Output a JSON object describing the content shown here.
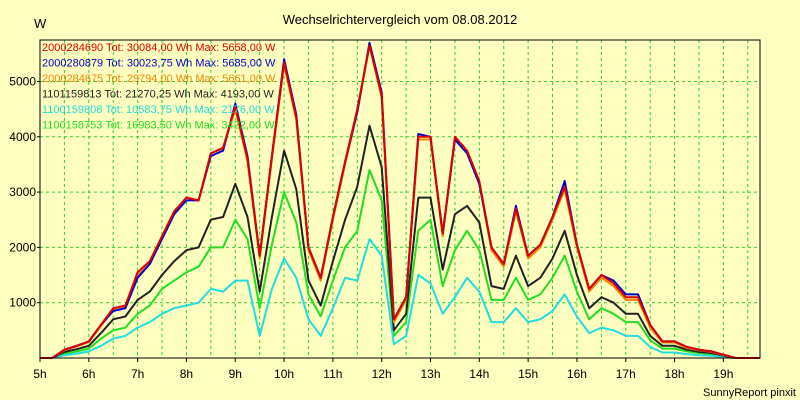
{
  "chart_data": {
    "type": "line",
    "title": "Wechselrichtervergleich vom 08.08.2012",
    "ylabel": "W",
    "xlabel": "",
    "credit": "SunnyReport pinxit",
    "ylim": [
      0,
      5750
    ],
    "xlim": [
      5.0,
      19.75
    ],
    "yticks": [
      1000,
      2000,
      3000,
      4000,
      5000
    ],
    "xticks": [
      {
        "v": 5,
        "label": "5h"
      },
      {
        "v": 6,
        "label": "6h"
      },
      {
        "v": 7,
        "label": "7h"
      },
      {
        "v": 8,
        "label": "8h"
      },
      {
        "v": 9,
        "label": "9h"
      },
      {
        "v": 10,
        "label": "10h"
      },
      {
        "v": 11,
        "label": "11h"
      },
      {
        "v": 12,
        "label": "12h"
      },
      {
        "v": 13,
        "label": "13h"
      },
      {
        "v": 14,
        "label": "14h"
      },
      {
        "v": 15,
        "label": "15h"
      },
      {
        "v": 16,
        "label": "16h"
      },
      {
        "v": 17,
        "label": "17h"
      },
      {
        "v": 18,
        "label": "18h"
      },
      {
        "v": 19,
        "label": "19h"
      }
    ],
    "grid": true,
    "legend_position": "top-left",
    "x": [
      5.0,
      5.25,
      5.5,
      5.75,
      6.0,
      6.25,
      6.5,
      6.75,
      7.0,
      7.25,
      7.5,
      7.75,
      8.0,
      8.25,
      8.5,
      8.75,
      9.0,
      9.25,
      9.5,
      9.75,
      10.0,
      10.25,
      10.5,
      10.75,
      11.0,
      11.25,
      11.5,
      11.75,
      12.0,
      12.25,
      12.5,
      12.75,
      13.0,
      13.25,
      13.5,
      13.75,
      14.0,
      14.25,
      14.5,
      14.75,
      15.0,
      15.25,
      15.5,
      15.75,
      16.0,
      16.25,
      16.5,
      16.75,
      17.0,
      17.25,
      17.5,
      17.75,
      18.0,
      18.25,
      18.5,
      18.75,
      19.0,
      19.25,
      19.5,
      19.75
    ],
    "series": [
      {
        "name": "2000284690 Tot: 30084,00 Wh Max: 5658,00 W",
        "color": "#dd0000",
        "values": [
          0,
          0,
          150,
          220,
          300,
          600,
          900,
          950,
          1550,
          1750,
          2200,
          2650,
          2900,
          2850,
          3700,
          3800,
          4550,
          3600,
          1850,
          3650,
          5350,
          4350,
          2000,
          1450,
          2550,
          3550,
          4500,
          5650,
          4750,
          700,
          1100,
          4000,
          4000,
          2250,
          4000,
          3750,
          3200,
          2000,
          1700,
          2700,
          1850,
          2050,
          2550,
          3100,
          2050,
          1250,
          1500,
          1350,
          1100,
          1100,
          600,
          300,
          300,
          200,
          150,
          120,
          60,
          0,
          0,
          0
        ]
      },
      {
        "name": "2000280879 Tot: 30023,75 Wh Max: 5685,00 W",
        "color": "#0000cc",
        "values": [
          0,
          0,
          150,
          220,
          300,
          600,
          850,
          900,
          1450,
          1700,
          2150,
          2600,
          2850,
          2850,
          3650,
          3750,
          4600,
          3650,
          1850,
          3650,
          5400,
          4400,
          2000,
          1450,
          2550,
          3550,
          4450,
          5700,
          4800,
          700,
          1100,
          4050,
          4000,
          2250,
          3950,
          3700,
          3150,
          2000,
          1700,
          2750,
          1850,
          2050,
          2550,
          3200,
          2050,
          1250,
          1500,
          1400,
          1150,
          1150,
          600,
          300,
          300,
          200,
          150,
          120,
          60,
          0,
          0,
          0
        ]
      },
      {
        "name": "2000284675 Tot: 29794,00 Wh Max: 5661,00 W",
        "color": "#ee8800",
        "values": [
          0,
          0,
          140,
          210,
          290,
          580,
          880,
          930,
          1500,
          1700,
          2200,
          2650,
          2900,
          2850,
          3700,
          3800,
          4500,
          3550,
          1800,
          3600,
          5300,
          4300,
          1950,
          1400,
          2500,
          3500,
          4450,
          5650,
          4700,
          650,
          1050,
          3950,
          3950,
          2200,
          3950,
          3700,
          3150,
          1950,
          1650,
          2650,
          1800,
          2000,
          2500,
          3050,
          2000,
          1200,
          1450,
          1300,
          1050,
          1050,
          550,
          280,
          280,
          180,
          140,
          110,
          55,
          0,
          0,
          0
        ]
      },
      {
        "name": "1101159813 Tot: 21270,25 Wh Max: 4193,00 W",
        "color": "#222222",
        "values": [
          0,
          0,
          110,
          160,
          220,
          450,
          700,
          750,
          1050,
          1200,
          1500,
          1750,
          1950,
          2000,
          2500,
          2550,
          3150,
          2550,
          1200,
          2550,
          3750,
          3050,
          1400,
          950,
          1750,
          2500,
          3100,
          4200,
          3450,
          500,
          800,
          2900,
          2900,
          1600,
          2600,
          2750,
          2450,
          1300,
          1250,
          1850,
          1300,
          1450,
          1800,
          2300,
          1500,
          900,
          1100,
          1000,
          800,
          800,
          400,
          220,
          220,
          150,
          110,
          90,
          45,
          0,
          0,
          0
        ]
      },
      {
        "name": "1100159808 Tot: 10583,75 Wh Max: 2176,00 W",
        "color": "#22dddd",
        "values": [
          0,
          0,
          50,
          80,
          120,
          220,
          350,
          400,
          550,
          650,
          800,
          900,
          950,
          1000,
          1250,
          1200,
          1400,
          1400,
          400,
          1250,
          1800,
          1450,
          700,
          400,
          900,
          1450,
          1400,
          2150,
          1850,
          250,
          400,
          1500,
          1350,
          800,
          1100,
          1450,
          1200,
          650,
          650,
          900,
          650,
          700,
          850,
          1150,
          750,
          450,
          550,
          500,
          400,
          400,
          200,
          100,
          100,
          70,
          50,
          40,
          20,
          0,
          0,
          0
        ]
      },
      {
        "name": "1100158753 Tot: 16983,50 Wh Max: 3422,00 W",
        "color": "#22dd22",
        "values": [
          0,
          0,
          80,
          120,
          170,
          350,
          500,
          550,
          800,
          950,
          1250,
          1400,
          1550,
          1650,
          2000,
          2000,
          2500,
          2150,
          900,
          2050,
          3000,
          2450,
          1150,
          750,
          1400,
          2000,
          2300,
          3400,
          2850,
          400,
          650,
          2300,
          2500,
          1300,
          1950,
          2300,
          1950,
          1050,
          1050,
          1450,
          1050,
          1150,
          1450,
          1850,
          1200,
          700,
          900,
          800,
          650,
          650,
          320,
          170,
          170,
          120,
          90,
          70,
          35,
          0,
          0,
          0
        ]
      }
    ]
  }
}
